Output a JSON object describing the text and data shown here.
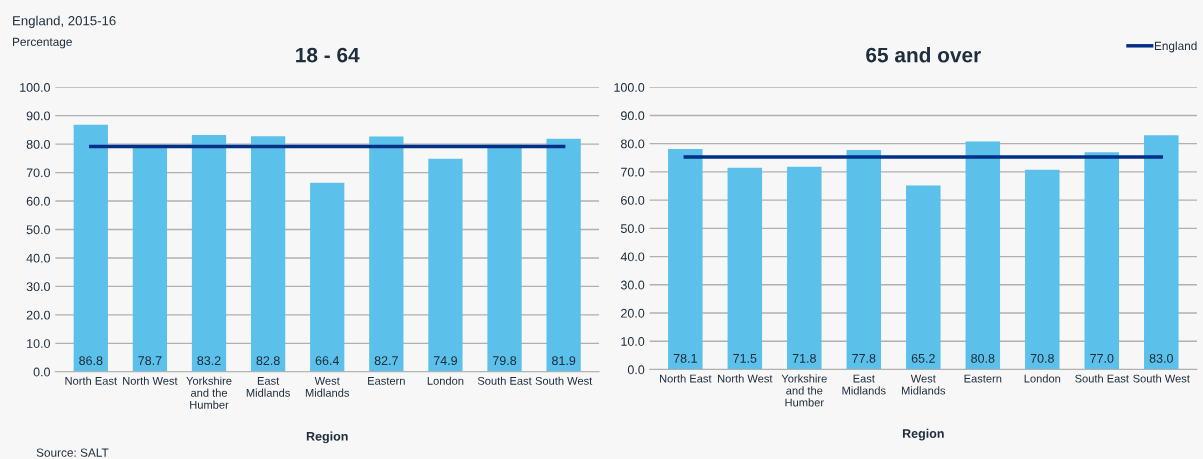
{
  "chart_data": [
    {
      "type": "bar",
      "title": "18 - 64",
      "xlabel": "Region",
      "ylabel": "Percentage",
      "annotations": [
        "England, 2015-16",
        "Source: SALT"
      ],
      "categories": [
        "North East",
        "North West",
        "Yorkshire\nand the\nHumber",
        "East\nMidlands",
        "West\nMidlands",
        "Eastern",
        "London",
        "South East",
        "South West"
      ],
      "series": [
        {
          "color": "#5bc0ea",
          "values": [
            86.8,
            78.7,
            83.2,
            82.8,
            66.4,
            82.7,
            74.9,
            79.8,
            81.9
          ],
          "value_labels": [
            "86.8",
            "78.7",
            "83.2",
            "82.8",
            "66.4",
            "82.7",
            "74.9",
            "79.8",
            "81.9"
          ]
        },
        {
          "type": "line",
          "color": "#003087",
          "values": [
            79.2,
            79.2,
            79.2,
            79.2,
            79.2,
            79.2,
            79.2,
            79.2,
            79.2
          ]
        }
      ],
      "ylim": [
        0,
        100
      ],
      "yticks": [
        {
          "value": 0,
          "label": "0.0"
        },
        {
          "value": 10,
          "label": "10.0"
        },
        {
          "value": 20,
          "label": "20.0"
        },
        {
          "value": 30,
          "label": "30.0"
        },
        {
          "value": 40,
          "label": "40.0"
        },
        {
          "value": 50,
          "label": "50.0"
        },
        {
          "value": 60,
          "label": "60.0"
        },
        {
          "value": 70,
          "label": "70.0"
        },
        {
          "value": 80,
          "label": "80.0"
        },
        {
          "value": 90,
          "label": "90.0"
        },
        {
          "value": 100,
          "label": "100.0"
        }
      ],
      "grid": "y",
      "legend": false
    },
    {
      "type": "bar",
      "title": "65 and over",
      "xlabel": "Region",
      "categories": [
        "North East",
        "North West",
        "Yorkshire\nand the\nHumber",
        "East\nMidlands",
        "West\nMidlands",
        "Eastern",
        "London",
        "South East",
        "South West"
      ],
      "series": [
        {
          "color": "#5bc0ea",
          "values": [
            78.1,
            71.5,
            71.8,
            77.8,
            65.2,
            80.8,
            70.8,
            77.0,
            83.0
          ],
          "value_labels": [
            "78.1",
            "71.5",
            "71.8",
            "77.8",
            "65.2",
            "80.8",
            "70.8",
            "77.0",
            "83.0"
          ]
        },
        {
          "type": "line",
          "name": "England",
          "color": "#003087",
          "values": [
            75.3,
            75.3,
            75.3,
            75.3,
            75.3,
            75.3,
            75.3,
            75.3,
            75.3
          ]
        }
      ],
      "ylim": [
        0,
        100
      ],
      "yticks": [
        {
          "value": 0,
          "label": "0.0"
        },
        {
          "value": 10,
          "label": "10.0"
        },
        {
          "value": 20,
          "label": "20.0"
        },
        {
          "value": 30,
          "label": "30.0"
        },
        {
          "value": 40,
          "label": "40.0"
        },
        {
          "value": 50,
          "label": "50.0"
        },
        {
          "value": 60,
          "label": "60.0"
        },
        {
          "value": 70,
          "label": "70.0"
        },
        {
          "value": 80,
          "label": "80.0"
        },
        {
          "value": 90,
          "label": "90.0"
        },
        {
          "value": 100,
          "label": "100.0"
        }
      ],
      "grid": "y",
      "legend": "top right"
    }
  ]
}
